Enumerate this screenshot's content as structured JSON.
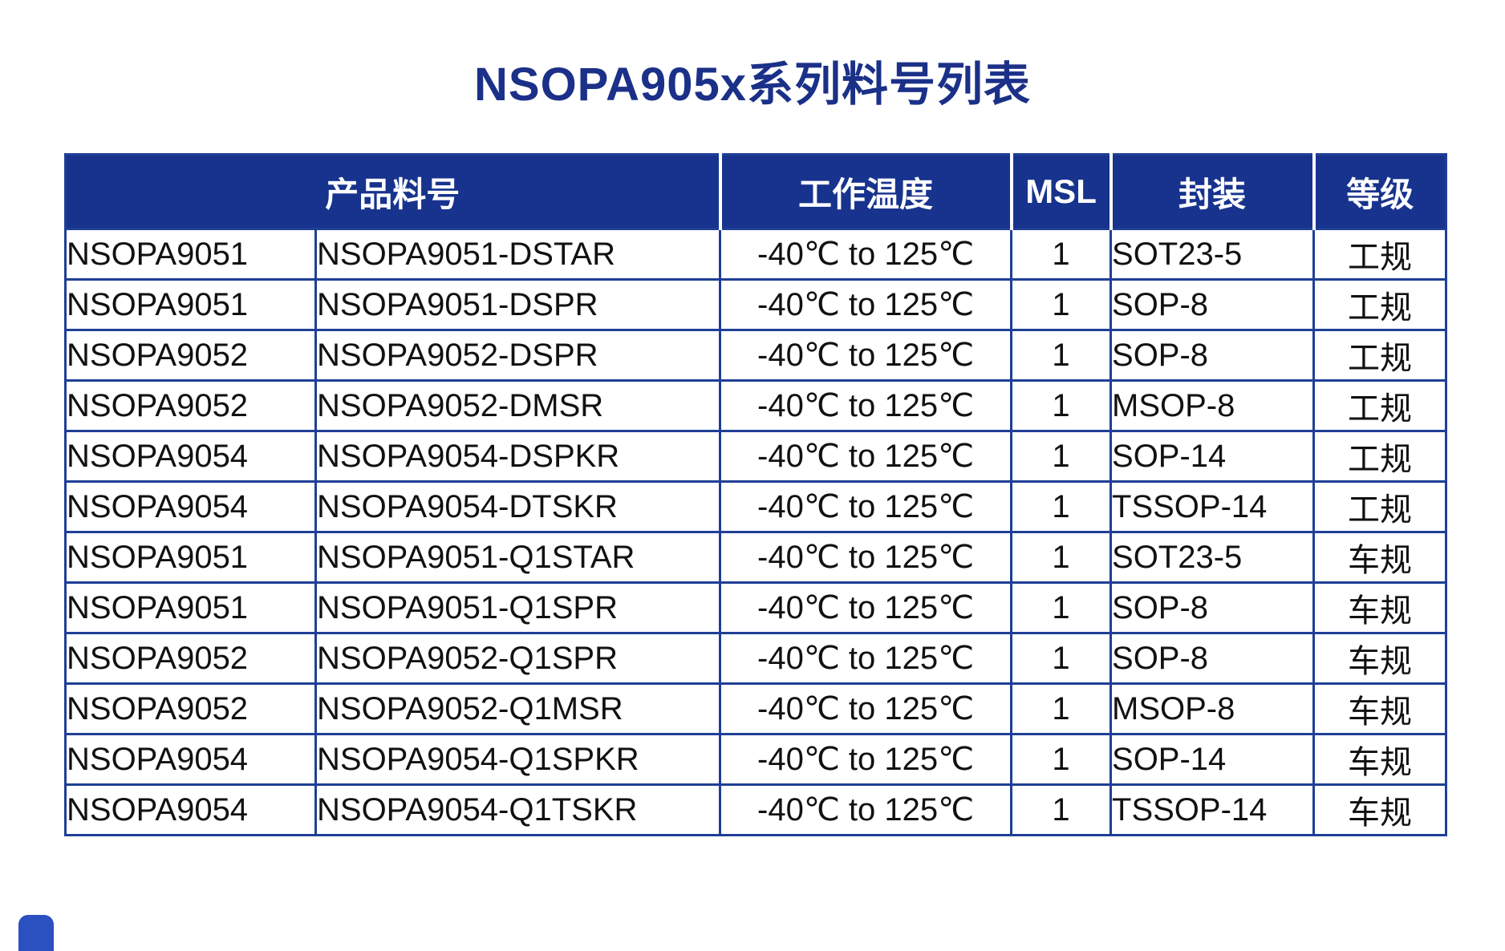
{
  "page": {
    "title": "NSOPA905x系列料号列表"
  },
  "colors": {
    "title_text": "#1b3088",
    "header_background": "#17338d",
    "header_text": "#ffffff",
    "header_divider": "#ffffff",
    "table_border": "#1f3f96",
    "body_text": "#111111",
    "corner_accent": "#2b50c0"
  },
  "table": {
    "headers": [
      "产品料号",
      "工作温度",
      "MSL",
      "封装",
      "等级"
    ],
    "rows": [
      [
        "NSOPA9051",
        "NSOPA9051-DSTAR",
        "-40℃ to 125℃",
        "1",
        "SOT23-5",
        "工规"
      ],
      [
        "NSOPA9051",
        "NSOPA9051-DSPR",
        "-40℃ to 125℃",
        "1",
        "SOP-8",
        "工规"
      ],
      [
        "NSOPA9052",
        "NSOPA9052-DSPR",
        "-40℃ to 125℃",
        "1",
        "SOP-8",
        "工规"
      ],
      [
        "NSOPA9052",
        "NSOPA9052-DMSR",
        "-40℃ to 125℃",
        "1",
        "MSOP-8",
        "工规"
      ],
      [
        "NSOPA9054",
        "NSOPA9054-DSPKR",
        "-40℃ to 125℃",
        "1",
        "SOP-14",
        "工规"
      ],
      [
        "NSOPA9054",
        "NSOPA9054-DTSKR",
        "-40℃ to 125℃",
        "1",
        "TSSOP-14",
        "工规"
      ],
      [
        "NSOPA9051",
        "NSOPA9051-Q1STAR",
        "-40℃ to 125℃",
        "1",
        "SOT23-5",
        "车规"
      ],
      [
        "NSOPA9051",
        "NSOPA9051-Q1SPR",
        "-40℃ to 125℃",
        "1",
        "SOP-8",
        "车规"
      ],
      [
        "NSOPA9052",
        "NSOPA9052-Q1SPR",
        "-40℃ to 125℃",
        "1",
        "SOP-8",
        "车规"
      ],
      [
        "NSOPA9052",
        "NSOPA9052-Q1MSR",
        "-40℃ to 125℃",
        "1",
        "MSOP-8",
        "车规"
      ],
      [
        "NSOPA9054",
        "NSOPA9054-Q1SPKR",
        "-40℃ to 125℃",
        "1",
        "SOP-14",
        "车规"
      ],
      [
        "NSOPA9054",
        "NSOPA9054-Q1TSKR",
        "-40℃ to 125℃",
        "1",
        "TSSOP-14",
        "车规"
      ]
    ],
    "cell_names": [
      "cell-series",
      "cell-part-number",
      "cell-operating-temperature",
      "cell-msl",
      "cell-package",
      "cell-grade"
    ]
  }
}
